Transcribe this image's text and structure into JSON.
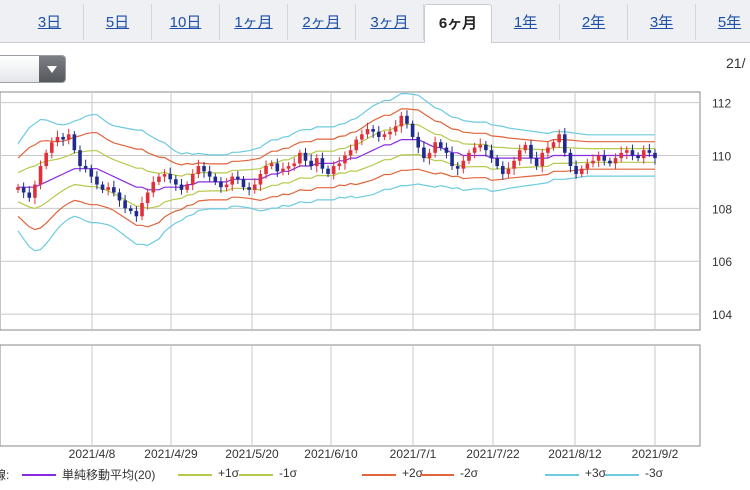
{
  "tabs": [
    {
      "label": "3日",
      "active": false
    },
    {
      "label": "5日",
      "active": false
    },
    {
      "label": "10日",
      "active": false
    },
    {
      "label": "1ヶ月",
      "active": false
    },
    {
      "label": "2ヶ月",
      "active": false
    },
    {
      "label": "3ヶ月",
      "active": false
    },
    {
      "label": "6ヶ月",
      "active": true
    },
    {
      "label": "1年",
      "active": false
    },
    {
      "label": "2年",
      "active": false
    },
    {
      "label": "3年",
      "active": false
    },
    {
      "label": "5年",
      "active": false
    }
  ],
  "period_label": "21/",
  "legend": {
    "prefix": "線:",
    "items": [
      {
        "label": "単純移動平均(20)",
        "color": "#8a2be2"
      },
      {
        "label": "+1σ",
        "color": "#b5c94a"
      },
      {
        "label": "-1σ",
        "color": "#b5c94a"
      },
      {
        "label": "+2σ",
        "color": "#e0653a"
      },
      {
        "label": "-2σ",
        "color": "#e0653a"
      },
      {
        "label": "+3σ",
        "color": "#6ccbe0"
      },
      {
        "label": "-3σ",
        "color": "#6ccbe0"
      }
    ]
  },
  "chart_data": {
    "type": "candlestick",
    "x_tick_labels": [
      "2021/4/8",
      "2021/4/29",
      "2021/5/20",
      "2021/6/10",
      "2021/7/1",
      "2021/7/22",
      "2021/8/12",
      "2021/9/2"
    ],
    "y_ticks": [
      104,
      106,
      108,
      110,
      112
    ],
    "ylim": [
      103.4,
      112.4
    ],
    "up_color": "#e0303a",
    "down_color": "#1f2a8c",
    "closes": [
      108.8,
      108.6,
      108.4,
      108.9,
      109.6,
      110.1,
      110.5,
      110.7,
      110.6,
      110.8,
      110.2,
      109.6,
      109.5,
      109.2,
      108.9,
      108.7,
      108.8,
      108.6,
      108.3,
      108.0,
      107.9,
      107.7,
      108.2,
      108.6,
      109.0,
      109.2,
      109.3,
      109.1,
      108.9,
      108.7,
      108.9,
      109.3,
      109.6,
      109.4,
      109.2,
      109.0,
      108.8,
      108.9,
      109.2,
      109.1,
      108.8,
      108.7,
      108.9,
      109.3,
      109.6,
      109.7,
      109.4,
      109.5,
      109.6,
      109.7,
      110.1,
      109.8,
      109.6,
      109.9,
      109.5,
      109.3,
      109.6,
      109.7,
      110.0,
      110.2,
      110.6,
      110.8,
      111.0,
      110.9,
      110.7,
      110.8,
      110.9,
      111.1,
      111.5,
      111.2,
      110.7,
      110.3,
      109.9,
      110.1,
      110.5,
      110.3,
      110.1,
      109.6,
      109.5,
      109.8,
      110.1,
      110.3,
      110.4,
      110.2,
      109.9,
      109.6,
      109.3,
      109.5,
      109.8,
      110.2,
      110.4,
      109.9,
      109.6,
      110.1,
      110.3,
      110.5,
      110.8,
      110.1,
      109.6,
      109.3,
      109.5,
      109.7,
      109.8,
      110.0,
      109.8,
      109.7,
      109.9,
      110.1,
      110.2,
      110.0,
      109.9,
      110.2,
      110.1,
      109.9
    ],
    "bands": {
      "sma": [
        108.8,
        108.8,
        108.8,
        108.8,
        108.9,
        109.0,
        109.1,
        109.2,
        109.3,
        109.4,
        109.5,
        109.5,
        109.5,
        109.5,
        109.5,
        109.4,
        109.3,
        109.2,
        109.1,
        109.0,
        108.9,
        108.8,
        108.8,
        108.7,
        108.7,
        108.7,
        108.8,
        108.8,
        108.8,
        108.8,
        108.9,
        108.9,
        109.0,
        109.0,
        109.0,
        109.0,
        109.0,
        109.0,
        109.1,
        109.1,
        109.1,
        109.1,
        109.1,
        109.1,
        109.2,
        109.3,
        109.3,
        109.4,
        109.4,
        109.5,
        109.6,
        109.6,
        109.6,
        109.7,
        109.7,
        109.7,
        109.7,
        109.8,
        109.8,
        109.9,
        109.9,
        110.0,
        110.1,
        110.2,
        110.3,
        110.4,
        110.4,
        110.5,
        110.6,
        110.6,
        110.6,
        110.6,
        110.5,
        110.4,
        110.3,
        110.3,
        110.2,
        110.1,
        110.1,
        110.0,
        110.0,
        110.0,
        110.0,
        110.0,
        109.9,
        109.9,
        109.9,
        109.9,
        109.9,
        109.9,
        109.9,
        109.9,
        109.9,
        109.9,
        109.9,
        110.0,
        110.0,
        110.0,
        110.0,
        110.0,
        110.0,
        110.0,
        110.0,
        110.0,
        110.0,
        110.0,
        110.0,
        110.0,
        110.0,
        110.0,
        110.0,
        110.0,
        110.0,
        110.0
      ],
      "sigma": [
        0.55,
        0.65,
        0.75,
        0.8,
        0.82,
        0.78,
        0.72,
        0.66,
        0.62,
        0.6,
        0.6,
        0.62,
        0.66,
        0.68,
        0.68,
        0.66,
        0.64,
        0.64,
        0.66,
        0.68,
        0.7,
        0.72,
        0.72,
        0.7,
        0.66,
        0.62,
        0.56,
        0.5,
        0.45,
        0.42,
        0.4,
        0.38,
        0.36,
        0.35,
        0.34,
        0.34,
        0.34,
        0.34,
        0.34,
        0.34,
        0.35,
        0.36,
        0.38,
        0.4,
        0.42,
        0.43,
        0.43,
        0.43,
        0.44,
        0.45,
        0.45,
        0.46,
        0.46,
        0.46,
        0.46,
        0.46,
        0.46,
        0.46,
        0.47,
        0.48,
        0.5,
        0.52,
        0.54,
        0.56,
        0.56,
        0.56,
        0.56,
        0.57,
        0.58,
        0.58,
        0.57,
        0.56,
        0.54,
        0.52,
        0.5,
        0.48,
        0.46,
        0.45,
        0.44,
        0.44,
        0.43,
        0.42,
        0.42,
        0.42,
        0.42,
        0.41,
        0.4,
        0.38,
        0.37,
        0.36,
        0.35,
        0.34,
        0.33,
        0.32,
        0.31,
        0.3,
        0.3,
        0.3,
        0.29,
        0.28,
        0.27,
        0.26,
        0.26,
        0.26,
        0.26,
        0.26,
        0.26,
        0.26,
        0.26,
        0.26,
        0.26,
        0.26,
        0.26,
        0.26
      ]
    }
  }
}
